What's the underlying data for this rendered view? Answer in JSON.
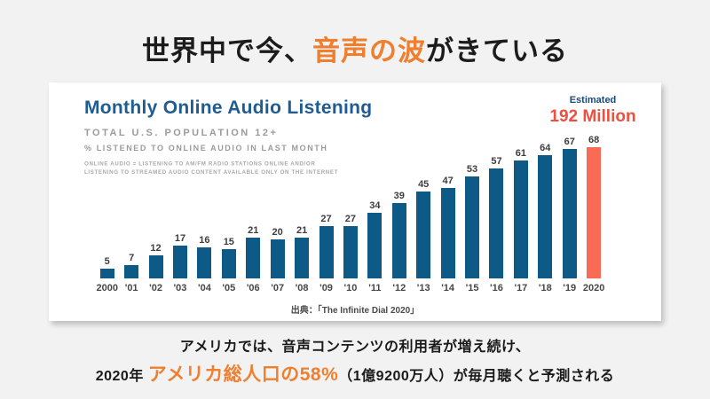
{
  "slide": {
    "title": {
      "pre": "世界中で今、",
      "highlight": "音声の波",
      "post": "がきている"
    },
    "caption": {
      "line1": "アメリカでは、音声コンテンツの利用者が増え続け、",
      "line2_pre": "2020年 ",
      "line2_highlight": "アメリカ総人口の58%",
      "line2_post": "（1億9200万人）が毎月聴くと予測される"
    }
  },
  "chart_card": {
    "title": "Monthly Online Audio Listening",
    "subtitle1": "TOTAL U.S. POPULATION 12+",
    "subtitle2": "% LISTENED TO ONLINE AUDIO IN LAST MONTH",
    "note": "ONLINE AUDIO = LISTENING TO AM/FM RADIO STATIONS ONLINE AND/OR\nLISTENING TO STREAMED AUDIO CONTENT AVAILABLE ONLY ON THE INTERNET",
    "estimated_label": "Estimated",
    "estimated_value": "192 Million",
    "source": "出典：「The Infinite Dial 2020」"
  },
  "chart_data": {
    "type": "bar",
    "title": "Monthly Online Audio Listening",
    "subtitle": "TOTAL U.S. POPULATION 12+ — % LISTENED TO ONLINE AUDIO IN LAST MONTH",
    "categories": [
      "2000",
      "'01",
      "'02",
      "'03",
      "'04",
      "'05",
      "'06",
      "'07",
      "'08",
      "'09",
      "'10",
      "'11",
      "'12",
      "'13",
      "'14",
      "'15",
      "'16",
      "'17",
      "'18",
      "'19",
      "2020"
    ],
    "values": [
      5,
      7,
      12,
      17,
      16,
      15,
      21,
      20,
      21,
      27,
      27,
      34,
      39,
      45,
      47,
      53,
      57,
      61,
      64,
      67,
      68
    ],
    "unit": "%",
    "ylim": [
      0,
      70
    ],
    "grid": false,
    "data_labels": true,
    "highlight_index": 20,
    "annotation": "Estimated 192 Million (2020, highlighted bar)"
  },
  "colors": {
    "bar_blue": "#0e5a87",
    "bar_coral": "#f96b57",
    "accent_orange": "#ef7f2f",
    "accent_red": "#ef4f3e",
    "brand_blue_dark": "#1e5c92",
    "slide_background": "#f2f2f2"
  }
}
